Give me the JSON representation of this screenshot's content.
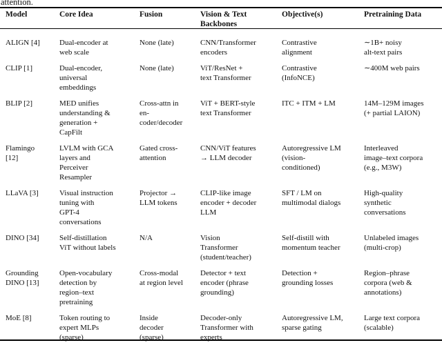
{
  "caption_fragment": "attention.",
  "table": {
    "columns": [
      {
        "label": "Model"
      },
      {
        "label": "Core Idea"
      },
      {
        "label": "Fusion"
      },
      {
        "label": "Vision & Text\nBackbones"
      },
      {
        "label": "Objective(s)"
      },
      {
        "label": "Pretraining Data"
      }
    ],
    "rows": [
      {
        "model": "ALIGN [4]",
        "core_idea": "Dual-encoder at\nweb scale",
        "fusion": "None (late)",
        "backbones": "CNN/Transformer\nencoders",
        "objective": "Contrastive\nalignment",
        "pretraining": "∼1B+ noisy\nalt-text pairs"
      },
      {
        "model": "CLIP [1]",
        "core_idea": "Dual-encoder,\nuniversal\nembeddings",
        "fusion": "None (late)",
        "backbones": "ViT/ResNet +\ntext Transformer",
        "objective": "Contrastive\n(InfoNCE)",
        "pretraining": "∼400M web pairs"
      },
      {
        "model": "BLIP [2]",
        "core_idea": "MED unifies\nunderstanding &\ngeneration +\nCapFilt",
        "fusion": "Cross-attn in\nen-\ncoder/decoder",
        "backbones": "ViT + BERT-style\ntext Transformer",
        "objective": "ITC + ITM + LM",
        "pretraining": "14M–129M images\n(+ partial LAION)"
      },
      {
        "model": "Flamingo\n[12]",
        "core_idea": "LVLM with GCA\nlayers and\nPerceiver\nResampler",
        "fusion": "Gated cross-\nattention",
        "backbones": "CNN/ViT features\n→ LLM decoder",
        "objective": "Autoregressive LM\n(vision-\nconditioned)",
        "pretraining": "Interleaved\nimage–text corpora\n(e.g., M3W)"
      },
      {
        "model": "LLaVA [3]",
        "core_idea": "Visual instruction\ntuning with\nGPT-4\nconversations",
        "fusion": "Projector →\nLLM tokens",
        "backbones": "CLIP-like image\nencoder + decoder\nLLM",
        "objective": "SFT / LM on\nmultimodal dialogs",
        "pretraining": "High-quality\nsynthetic\nconversations"
      },
      {
        "model": "DINO [34]",
        "core_idea": "Self-distillation\nViT without labels",
        "fusion": "N/A",
        "backbones": "Vision\nTransformer\n(student/teacher)",
        "objective": "Self-distill with\nmomentum teacher",
        "pretraining": "Unlabeled images\n(multi-crop)"
      },
      {
        "model": "Grounding\nDINO [13]",
        "core_idea": "Open-vocabulary\ndetection by\nregion–text\npretraining",
        "fusion": "Cross-modal\nat region level",
        "backbones": "Detector + text\nencoder (phrase\ngrounding)",
        "objective": "Detection +\ngrounding losses",
        "pretraining": "Region–phrase\ncorpora (web &\nannotations)"
      },
      {
        "model": "MoE [8]",
        "core_idea": "Token routing to\nexpert MLPs\n(sparse)",
        "fusion": "Inside\ndecoder\n(sparse)",
        "backbones": "Decoder-only\nTransformer with\nexperts",
        "objective": "Autoregressive LM,\nsparse gating",
        "pretraining": "Large text corpora\n(scalable)"
      }
    ]
  }
}
